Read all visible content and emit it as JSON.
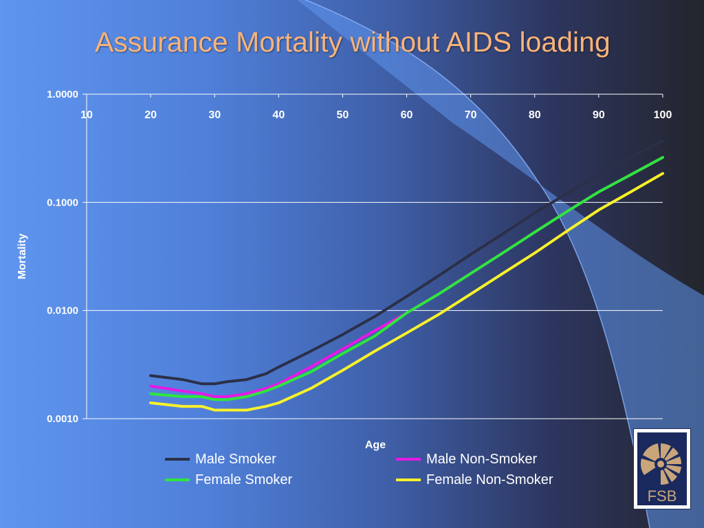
{
  "slide": {
    "title": "Assurance Mortality without AIDS loading"
  },
  "logo": {
    "text": "FSB"
  },
  "colors": {
    "title": "#f8b37a",
    "male_smoker": "#2b2f48",
    "male_non_smoker": "#e619e6",
    "female_smoker": "#2ee63c",
    "female_non_smoker": "#f8f22a"
  },
  "chart_data": {
    "type": "line",
    "title": "",
    "xlabel": "Age",
    "ylabel": "Mortality",
    "y_scale": "log",
    "xlim": [
      10,
      100
    ],
    "ylim": [
      0.001,
      1.0
    ],
    "x_ticks": [
      "10",
      "20",
      "30",
      "40",
      "50",
      "60",
      "70",
      "80",
      "90",
      "100"
    ],
    "y_ticks": [
      "1.0000",
      "0.1000",
      "0.0100",
      "0.0010"
    ],
    "grid": true,
    "legend_position": "bottom",
    "x": [
      20,
      25,
      28,
      30,
      32,
      35,
      38,
      40,
      45,
      50,
      55,
      60,
      65,
      70,
      75,
      80,
      85,
      90,
      95,
      100
    ],
    "series": [
      {
        "name": "Male Smoker",
        "color": "#2b2f48",
        "values": [
          0.0025,
          0.0023,
          0.0021,
          0.0021,
          0.0022,
          0.0023,
          0.0026,
          0.003,
          0.0042,
          0.006,
          0.0088,
          0.0135,
          0.021,
          0.033,
          0.051,
          0.08,
          0.12,
          0.18,
          0.26,
          0.37
        ]
      },
      {
        "name": "Male Non-Smoker",
        "color": "#e619e6",
        "values": [
          0.002,
          0.0018,
          0.0017,
          0.0016,
          0.0016,
          0.0017,
          0.0019,
          0.0021,
          0.003,
          0.0044,
          0.0065,
          0.0095,
          0.0142,
          0.022,
          0.034,
          0.053,
          0.082,
          0.125,
          0.18,
          0.26
        ]
      },
      {
        "name": "Female Smoker",
        "color": "#2ee63c",
        "values": [
          0.0017,
          0.0016,
          0.0016,
          0.0015,
          0.0015,
          0.0016,
          0.0018,
          0.002,
          0.0027,
          0.004,
          0.0058,
          0.0095,
          0.0142,
          0.022,
          0.034,
          0.053,
          0.082,
          0.125,
          0.18,
          0.26
        ]
      },
      {
        "name": "Female Non-Smoker",
        "color": "#f8f22a",
        "values": [
          0.0014,
          0.0013,
          0.0013,
          0.0012,
          0.0012,
          0.0012,
          0.0013,
          0.0014,
          0.0019,
          0.0028,
          0.0042,
          0.0062,
          0.0092,
          0.0142,
          0.022,
          0.034,
          0.054,
          0.085,
          0.125,
          0.185
        ]
      }
    ]
  }
}
